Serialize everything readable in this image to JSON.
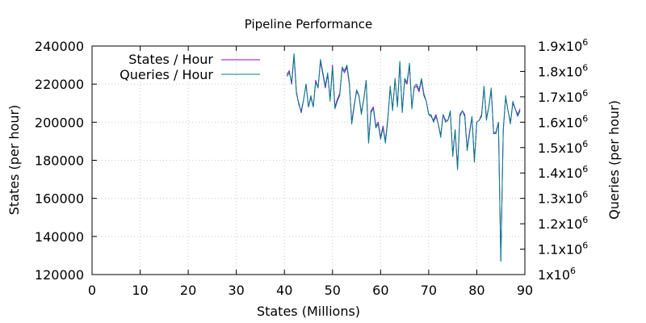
{
  "chart_data": {
    "type": "line",
    "title": "Pipeline Performance",
    "xlabel": "States (Millions)",
    "ylabel": "States (per hour)",
    "y2label": "Queries (per hour)",
    "xlim": [
      0,
      90
    ],
    "ylim": [
      120000,
      240000
    ],
    "y2lim": [
      1000000,
      1900000
    ],
    "xticks": [
      "0",
      "10",
      "20",
      "30",
      "40",
      "50",
      "60",
      "70",
      "80",
      "90"
    ],
    "yticks": [
      "120000",
      "140000",
      "160000",
      "180000",
      "200000",
      "220000",
      "240000"
    ],
    "y2ticks": [
      {
        "base": "1x10",
        "exp": "6"
      },
      {
        "base": "1.1x10",
        "exp": "6"
      },
      {
        "base": "1.2x10",
        "exp": "6"
      },
      {
        "base": "1.3x10",
        "exp": "6"
      },
      {
        "base": "1.4x10",
        "exp": "6"
      },
      {
        "base": "1.5x10",
        "exp": "6"
      },
      {
        "base": "1.6x10",
        "exp": "6"
      },
      {
        "base": "1.7x10",
        "exp": "6"
      },
      {
        "base": "1.8x10",
        "exp": "6"
      },
      {
        "base": "1.9x10",
        "exp": "6"
      }
    ],
    "grid": true,
    "legend_position": "top-left",
    "x": [
      40.5,
      41,
      41.5,
      42,
      42.5,
      43,
      43.5,
      44,
      44.5,
      45,
      45.5,
      46,
      46.5,
      47,
      47.5,
      48,
      48.5,
      49,
      49.5,
      50,
      50.5,
      51,
      51.5,
      52,
      52.5,
      53,
      53.5,
      54,
      54.5,
      55,
      55.5,
      56,
      56.5,
      57,
      57.5,
      58,
      58.5,
      59,
      59.5,
      60,
      60.5,
      61,
      61.5,
      62,
      62.5,
      63,
      63.5,
      64,
      64.5,
      65,
      65.5,
      66,
      66.5,
      67,
      67.5,
      68,
      68.5,
      69,
      69.5,
      70,
      70.5,
      71,
      71.5,
      72,
      72.5,
      73,
      73.5,
      74,
      74.5,
      75,
      75.5,
      76,
      76.5,
      77,
      77.5,
      78,
      78.5,
      79,
      79.5,
      80,
      80.5,
      81,
      81.5,
      82,
      82.5,
      83,
      83.5,
      84,
      84.5,
      85,
      85.5,
      86,
      86.5,
      87,
      87.5,
      88,
      88.5,
      89
    ],
    "series": [
      {
        "name": "States / Hour",
        "color": "#9400d3",
        "axis": "y",
        "values": [
          225000,
          227000,
          220000,
          235000,
          215000,
          210000,
          205000,
          212000,
          220000,
          208000,
          213000,
          208000,
          222000,
          218000,
          232000,
          225000,
          218000,
          225000,
          212000,
          230000,
          208000,
          212000,
          215000,
          228000,
          226000,
          229000,
          220000,
          200000,
          209000,
          216000,
          214000,
          205000,
          212000,
          222000,
          190000,
          206000,
          208000,
          198000,
          200000,
          192000,
          198000,
          190000,
          202000,
          218000,
          207000,
          222000,
          209000,
          231000,
          206000,
          222000,
          220000,
          230000,
          208000,
          218000,
          219000,
          216000,
          222000,
          214000,
          211000,
          204000,
          203000,
          201000,
          204000,
          199000,
          193000,
          204000,
          201000,
          201000,
          205000,
          183000,
          196000,
          176000,
          204000,
          206000,
          204000,
          186000,
          195000,
          203000,
          180000,
          200000,
          201000,
          204000,
          218000,
          202000,
          208000,
          217000,
          194000,
          195000,
          200000,
          127000,
          196000,
          213000,
          206000,
          200000,
          210000,
          207000,
          204000,
          207000
        ]
      },
      {
        "name": "Queries / Hour",
        "color": "#008080",
        "axis": "y",
        "values": [
          224000,
          226000,
          221000,
          236000,
          216000,
          209000,
          206000,
          212000,
          220000,
          208000,
          214000,
          208000,
          221000,
          218000,
          233000,
          226000,
          219000,
          226000,
          211000,
          229000,
          207000,
          211000,
          214000,
          229000,
          227000,
          230000,
          221000,
          199000,
          208000,
          217000,
          214000,
          204000,
          212000,
          222000,
          189000,
          205000,
          207000,
          197000,
          199000,
          191000,
          197000,
          189000,
          201000,
          219000,
          206000,
          223000,
          208000,
          232000,
          205000,
          223000,
          221000,
          231000,
          207000,
          219000,
          220000,
          217000,
          223000,
          215000,
          211000,
          204000,
          204000,
          200000,
          203000,
          199000,
          192000,
          204000,
          200000,
          201000,
          206000,
          182000,
          196000,
          175000,
          203000,
          206000,
          203000,
          185000,
          194000,
          203000,
          179000,
          200000,
          201000,
          203000,
          219000,
          201000,
          208000,
          218000,
          194000,
          194000,
          200000,
          127000,
          195000,
          214000,
          206000,
          199000,
          211000,
          207000,
          203000,
          206000
        ]
      }
    ]
  }
}
